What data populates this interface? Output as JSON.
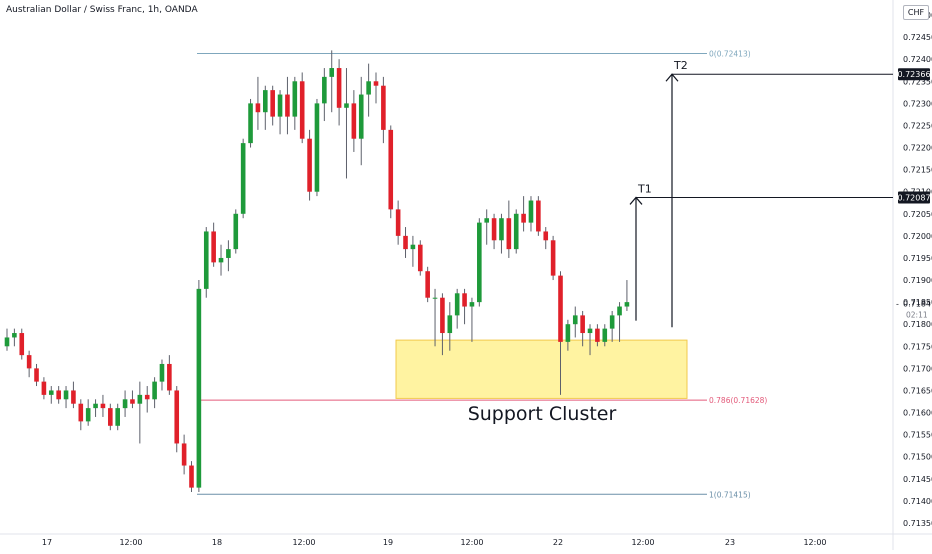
{
  "title": "Australian Dollar / Swiss Franc, 1h, OANDA",
  "currency": "CHF",
  "countdown": "02:11",
  "annotation_text": "Support Cluster",
  "colors": {
    "up": "#1e9a3a",
    "down": "#e0202a",
    "wick": "#5d606b",
    "fib_top": "#7fa7bd",
    "fib_mid": "#e35a7a",
    "fib_bottom": "#6b8fa8",
    "zone_fill": "#fff08a",
    "zone_stroke": "#f2c94c",
    "marker_fill": "#131722"
  },
  "chart_data": {
    "type": "candlestick",
    "title": "Australian Dollar / Swiss Franc, 1h, OANDA",
    "y_range": [
      0.71325,
      0.72525
    ],
    "y_ticks": [
      0.7135,
      0.714,
      0.7145,
      0.715,
      0.7155,
      0.716,
      0.7165,
      0.717,
      0.7175,
      0.718,
      0.7185,
      0.719,
      0.7195,
      0.72,
      0.7205,
      0.721,
      0.7215,
      0.722,
      0.7225,
      0.723,
      0.7235,
      0.724,
      0.7245,
      0.725
    ],
    "y_tick_labels": [
      "0.71350",
      "0.71400",
      "0.71450",
      "0.71500",
      "0.71550",
      "0.71600",
      "0.71650",
      "0.71700",
      "0.71750",
      "0.71800",
      "0.71850",
      "0.71900",
      "0.71950",
      "0.72000",
      "0.72050",
      "0.72100",
      "0.72150",
      "0.72200",
      "0.72250",
      "0.72300",
      "0.72350",
      "0.72400",
      "0.72450",
      "0.72500"
    ],
    "x_ticks": [
      "17",
      "12:00",
      "18",
      "12:00",
      "19",
      "12:00",
      "22",
      "12:00",
      "23",
      "12:00"
    ],
    "candles": [
      [
        0.7175,
        0.7179,
        0.7174,
        0.7177
      ],
      [
        0.7177,
        0.7179,
        0.7175,
        0.7178
      ],
      [
        0.7178,
        0.7179,
        0.7172,
        0.7173
      ],
      [
        0.7173,
        0.7174,
        0.7168,
        0.717
      ],
      [
        0.717,
        0.7171,
        0.7166,
        0.7167
      ],
      [
        0.7167,
        0.7168,
        0.7163,
        0.7164
      ],
      [
        0.7164,
        0.7166,
        0.7162,
        0.7165
      ],
      [
        0.7165,
        0.7166,
        0.7162,
        0.7163
      ],
      [
        0.7163,
        0.7166,
        0.7161,
        0.7165
      ],
      [
        0.7165,
        0.7167,
        0.7161,
        0.7162
      ],
      [
        0.7162,
        0.7163,
        0.7156,
        0.7158
      ],
      [
        0.7158,
        0.7163,
        0.7157,
        0.7161
      ],
      [
        0.7161,
        0.7163,
        0.7159,
        0.7162
      ],
      [
        0.7162,
        0.7164,
        0.7159,
        0.7161
      ],
      [
        0.7161,
        0.7162,
        0.7156,
        0.7157
      ],
      [
        0.7157,
        0.7162,
        0.7156,
        0.7161
      ],
      [
        0.7161,
        0.7165,
        0.7159,
        0.7163
      ],
      [
        0.7163,
        0.7165,
        0.7161,
        0.7162
      ],
      [
        0.7162,
        0.7167,
        0.7153,
        0.7164
      ],
      [
        0.7164,
        0.7166,
        0.716,
        0.7163
      ],
      [
        0.7163,
        0.7168,
        0.7161,
        0.7167
      ],
      [
        0.7167,
        0.7172,
        0.7165,
        0.7171
      ],
      [
        0.7171,
        0.7173,
        0.7164,
        0.7165
      ],
      [
        0.7165,
        0.7166,
        0.7151,
        0.7153
      ],
      [
        0.7153,
        0.7155,
        0.7146,
        0.7148
      ],
      [
        0.7148,
        0.7149,
        0.7142,
        0.7143
      ],
      [
        0.7143,
        0.719,
        0.7142,
        0.7188
      ],
      [
        0.7188,
        0.7202,
        0.7186,
        0.7201
      ],
      [
        0.7201,
        0.7203,
        0.7193,
        0.7194
      ],
      [
        0.7194,
        0.7198,
        0.7191,
        0.7195
      ],
      [
        0.7195,
        0.7199,
        0.7192,
        0.7197
      ],
      [
        0.7197,
        0.7206,
        0.7196,
        0.7205
      ],
      [
        0.7205,
        0.7222,
        0.7204,
        0.7221
      ],
      [
        0.7221,
        0.7231,
        0.722,
        0.723
      ],
      [
        0.723,
        0.7236,
        0.7224,
        0.7228
      ],
      [
        0.7228,
        0.7234,
        0.7224,
        0.7233
      ],
      [
        0.7233,
        0.7234,
        0.7225,
        0.7227
      ],
      [
        0.7227,
        0.7233,
        0.7223,
        0.7232
      ],
      [
        0.7232,
        0.7236,
        0.7223,
        0.7227
      ],
      [
        0.7227,
        0.7236,
        0.7224,
        0.7235
      ],
      [
        0.7235,
        0.7237,
        0.7221,
        0.7222
      ],
      [
        0.7222,
        0.7224,
        0.7208,
        0.721
      ],
      [
        0.721,
        0.7231,
        0.7209,
        0.723
      ],
      [
        0.723,
        0.7238,
        0.7226,
        0.7236
      ],
      [
        0.7236,
        0.7242,
        0.7228,
        0.7238
      ],
      [
        0.7238,
        0.724,
        0.7225,
        0.7229
      ],
      [
        0.7229,
        0.7238,
        0.7213,
        0.723
      ],
      [
        0.723,
        0.7233,
        0.7219,
        0.7222
      ],
      [
        0.7222,
        0.7236,
        0.7216,
        0.7232
      ],
      [
        0.7232,
        0.7239,
        0.7227,
        0.7235
      ],
      [
        0.7235,
        0.7237,
        0.723,
        0.7234
      ],
      [
        0.7234,
        0.7236,
        0.7221,
        0.7224
      ],
      [
        0.7224,
        0.7225,
        0.7204,
        0.7206
      ],
      [
        0.7206,
        0.7208,
        0.7198,
        0.72
      ],
      [
        0.72,
        0.7202,
        0.7195,
        0.7197
      ],
      [
        0.7197,
        0.72,
        0.7193,
        0.7198
      ],
      [
        0.7198,
        0.7199,
        0.7191,
        0.7192
      ],
      [
        0.7192,
        0.7193,
        0.7185,
        0.7186
      ],
      [
        0.7186,
        0.7188,
        0.7175,
        0.7186
      ],
      [
        0.7186,
        0.7187,
        0.7173,
        0.7178
      ],
      [
        0.7178,
        0.7185,
        0.7174,
        0.7182
      ],
      [
        0.7182,
        0.7188,
        0.7179,
        0.7187
      ],
      [
        0.7187,
        0.7188,
        0.718,
        0.7184
      ],
      [
        0.7184,
        0.7186,
        0.7176,
        0.7185
      ],
      [
        0.7185,
        0.7204,
        0.7184,
        0.7203
      ],
      [
        0.7203,
        0.7206,
        0.7198,
        0.7204
      ],
      [
        0.7204,
        0.7205,
        0.7197,
        0.7199
      ],
      [
        0.7199,
        0.7205,
        0.7196,
        0.7204
      ],
      [
        0.7204,
        0.7208,
        0.7195,
        0.7197
      ],
      [
        0.7197,
        0.7206,
        0.7196,
        0.7205
      ],
      [
        0.7205,
        0.7209,
        0.7201,
        0.7203
      ],
      [
        0.7203,
        0.7209,
        0.7201,
        0.7208
      ],
      [
        0.7208,
        0.7209,
        0.72,
        0.7201
      ],
      [
        0.7201,
        0.7202,
        0.7197,
        0.7199
      ],
      [
        0.7199,
        0.72,
        0.719,
        0.7191
      ],
      [
        0.7191,
        0.7192,
        0.7164,
        0.7176
      ],
      [
        0.7176,
        0.7181,
        0.7174,
        0.718
      ],
      [
        0.718,
        0.7184,
        0.7177,
        0.7182
      ],
      [
        0.7182,
        0.7183,
        0.7175,
        0.7178
      ],
      [
        0.7178,
        0.718,
        0.7173,
        0.7179
      ],
      [
        0.7179,
        0.718,
        0.7175,
        0.7176
      ],
      [
        0.7176,
        0.718,
        0.7175,
        0.7179
      ],
      [
        0.7179,
        0.7183,
        0.7176,
        0.7182
      ],
      [
        0.7182,
        0.7185,
        0.7176,
        0.7184
      ],
      [
        0.7184,
        0.719,
        0.7183,
        0.7185
      ]
    ],
    "fib_levels": [
      {
        "label": "0(0.72413)",
        "value": 0.72413
      },
      {
        "label": "0.786(0.71628)",
        "value": 0.71628
      },
      {
        "label": "1(0.71415)",
        "value": 0.71415
      }
    ],
    "support_zone": {
      "label": "Support Cluster",
      "top": 0.71764,
      "bottom": 0.71632
    },
    "targets": [
      {
        "label": "T1",
        "value": 0.72087,
        "price_label": "0.72087"
      },
      {
        "label": "T2",
        "value": 0.72366,
        "price_label": "0.72366"
      }
    ],
    "last_price": {
      "value": 0.71847,
      "label": "0.71847"
    }
  }
}
